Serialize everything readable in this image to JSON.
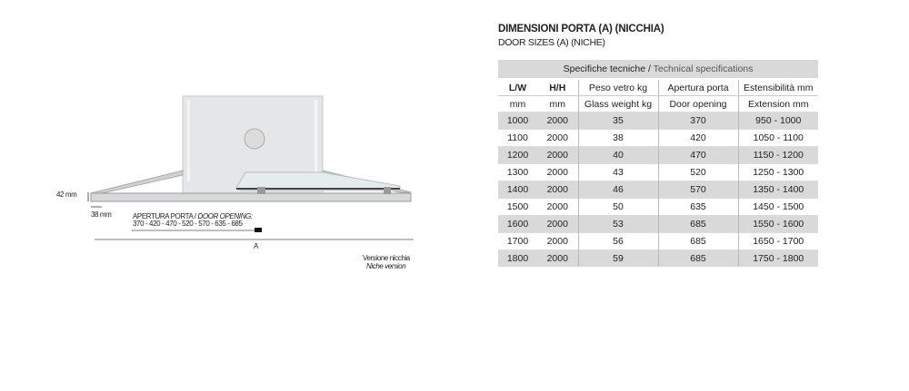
{
  "drawing": {
    "dim_42": "42 mm",
    "dim_38": "38 mm",
    "opening_label_it": "APERTURA PORTA / ",
    "opening_label_en": "DOOR OPENING:",
    "opening_values": "370 - 420 - 470 - 520 - 570 - 635 - 685",
    "dim_a": "A",
    "version_it": "Versione nicchia",
    "version_en": "Niche version"
  },
  "title": "DIMENSIONI PORTA (A) (NICCHIA)",
  "subtitle": "DOOR SIZES (A) (NICHE)",
  "table": {
    "caption_it": "Specifiche tecniche /",
    "caption_en": " Technical specifications",
    "headers_row1": [
      "L/W",
      "H/H",
      "Peso vetro kg",
      "Apertura porta",
      "Estensibilità mm"
    ],
    "headers_row2": [
      "mm",
      "mm",
      "Glass weight kg",
      "Door opening",
      "Extension mm"
    ],
    "rows": [
      [
        "1000",
        "2000",
        "35",
        "370",
        "950 - 1000"
      ],
      [
        "1100",
        "2000",
        "38",
        "420",
        "1050 - 1100"
      ],
      [
        "1200",
        "2000",
        "40",
        "470",
        "1150 - 1200"
      ],
      [
        "1300",
        "2000",
        "43",
        "520",
        "1250 - 1300"
      ],
      [
        "1400",
        "2000",
        "46",
        "570",
        "1350 - 1400"
      ],
      [
        "1500",
        "2000",
        "50",
        "635",
        "1450 - 1500"
      ],
      [
        "1600",
        "2000",
        "53",
        "685",
        "1550 - 1600"
      ],
      [
        "1700",
        "2000",
        "56",
        "685",
        "1650 - 1700"
      ],
      [
        "1800",
        "2000",
        "59",
        "685",
        "1750 - 1800"
      ]
    ]
  }
}
